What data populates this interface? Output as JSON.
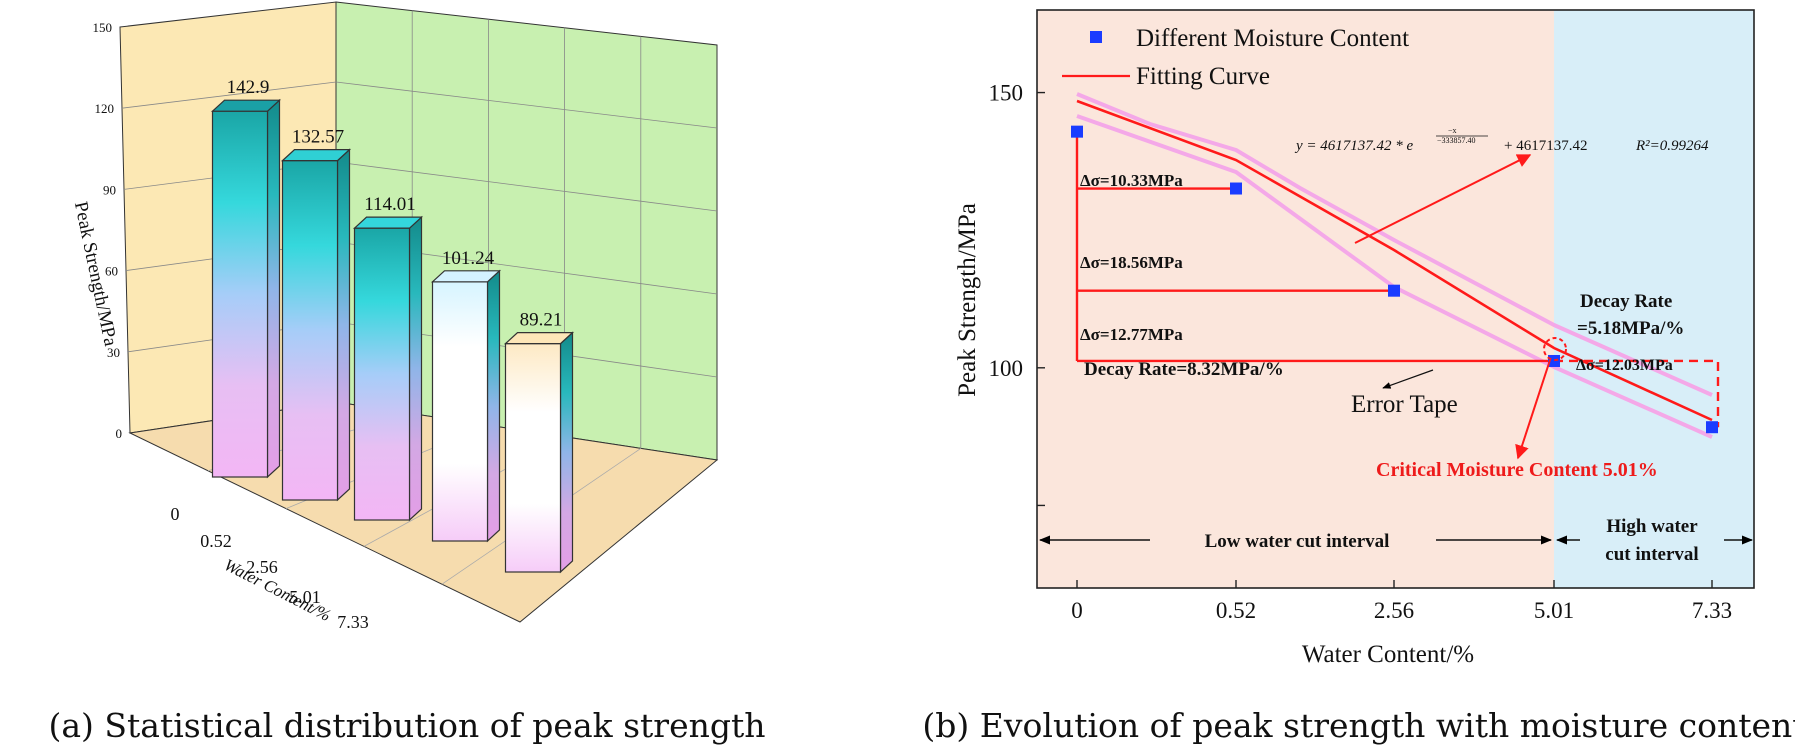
{
  "captions": {
    "a": "(a) Statistical distribution of peak strength",
    "b": "(b) Evolution of peak strength with moisture content"
  },
  "chart_data": [
    {
      "type": "bar",
      "projection": "3d",
      "categories": [
        "0",
        "0.52",
        "2.56",
        "5.01",
        "7.33"
      ],
      "values": [
        142.9,
        132.57,
        114.01,
        101.24,
        89.21
      ],
      "value_labels": [
        "142.9",
        "132.57",
        "114.01",
        "101.24",
        "89.21"
      ],
      "xlabel": "Water Content/%",
      "ylabel": "Peak Strength/MPa",
      "ylim": [
        0,
        150
      ],
      "yticks": [
        "0",
        "30",
        "60",
        "90",
        "120",
        "150"
      ],
      "grid": true,
      "colors": {
        "back_wall": "#c8f0b0",
        "side_wall": "#fce8b4",
        "floor": "#f6dcae"
      }
    },
    {
      "type": "scatter",
      "x": [
        "0",
        "0.52",
        "2.56",
        "5.01",
        "7.33"
      ],
      "y": [
        142.9,
        132.57,
        114.01,
        101.24,
        89.21
      ],
      "xlabel": "Water Content/%",
      "ylabel": "Peak Strength/MPa",
      "ylim": [
        60,
        165
      ],
      "yticks": [
        "100",
        "150"
      ],
      "legend": {
        "position": "top-left",
        "entries": [
          {
            "label": "Different Moisture Content",
            "color": "#1a3cff",
            "marker": "square"
          },
          {
            "label": "Fitting Curve",
            "color": "#ff1a1a",
            "marker": "line"
          }
        ]
      },
      "equation": {
        "prefix": "y = 4617137.42 * e",
        "exp_num": "−x",
        "exp_den": "−333857.40",
        "suffix": "+ 4617137.42",
        "r2": "R²=0.99264"
      },
      "annotations": {
        "delta1": "Δσ=10.33MPa",
        "delta2": "Δσ=18.56MPa",
        "delta3": "Δσ=12.77MPa",
        "decay_low": "Decay Rate=8.32MPa/%",
        "decay_high_1": "Decay Rate",
        "decay_high_2": "=5.18MPa/%",
        "delta4": "Δσ=12.03MPa",
        "error_tape": "Error Tape",
        "critical": "Critical Moisture Content 5.01%",
        "low_interval": "Low water cut interval",
        "high_interval_1": "High water",
        "high_interval_2": "cut interval"
      },
      "colors": {
        "low_region": "#fbe6dc",
        "high_region": "#d8eef8",
        "fit": "#ff1a1a",
        "band": "#f4a8e8",
        "point": "#1a3cff"
      }
    }
  ]
}
